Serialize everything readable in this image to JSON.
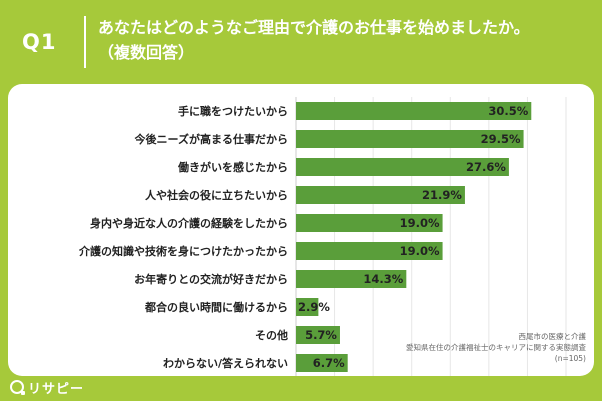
{
  "header": {
    "q_label": "Q1",
    "title_line1": "あなたはどのようなご理由で介護のお仕事を始めましたか。",
    "title_line2": "（複数回答）"
  },
  "chart_data": {
    "type": "bar",
    "orientation": "horizontal",
    "categories": [
      "手に職をつけたいから",
      "今後ニーズが高まる仕事だから",
      "働きがいを感じたから",
      "人や社会の役に立ちたいから",
      "身内や身近な人の介護の経験をしたから",
      "介護の知識や技術を身につけたかったから",
      "お年寄りとの交流が好きだから",
      "都合の良い時間に働けるから",
      "その他",
      "わからない/答えられない"
    ],
    "values": [
      30.5,
      29.5,
      27.6,
      21.9,
      19.0,
      19.0,
      14.3,
      2.9,
      5.7,
      6.7
    ],
    "value_labels": [
      "30.5%",
      "29.5%",
      "27.6%",
      "21.9%",
      "19.0%",
      "19.0%",
      "14.3%",
      "2.9%",
      "5.7%",
      "6.7%"
    ],
    "xlim": [
      0,
      35
    ],
    "grid": true,
    "bar_color": "#5a9e3a",
    "label_color": "#222222"
  },
  "source": {
    "line1": "西尾市の医療と介護",
    "line2": "愛知県在住の介護福祉士のキャリアに関する実態調査",
    "line3": "(n=105)"
  },
  "brand": {
    "logo_text": "リサピー",
    "background_color": "#a6c93a"
  }
}
